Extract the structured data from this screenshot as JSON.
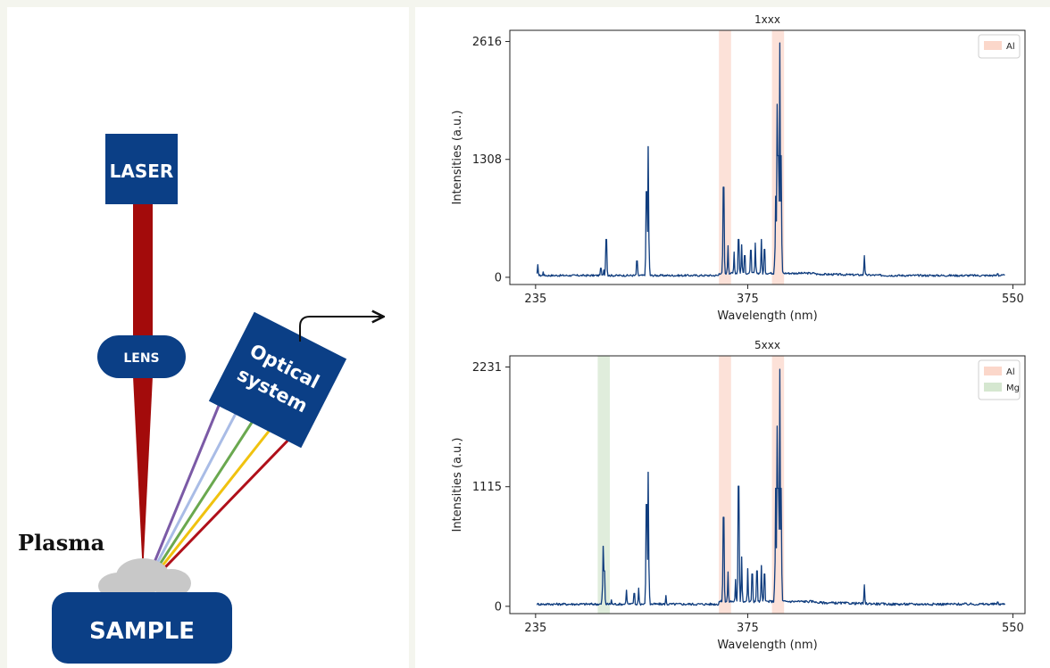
{
  "diagram": {
    "laser_label": "LASER",
    "lens_label": "LENS",
    "optical_label_line1": "Optical",
    "optical_label_line2": "system",
    "sample_label": "SAMPLE",
    "plasma_label": "Plasma",
    "colors": {
      "box_fill": "#0b3f86",
      "beam": "#a30b0b",
      "plasma_cloud": "#c8c8c8",
      "rays": [
        "#7b5aa6",
        "#a9bce6",
        "#6aa84f",
        "#f0c20f",
        "#b0101a"
      ]
    }
  },
  "chart_data": [
    {
      "type": "line",
      "title": "1xxx",
      "xlabel": "Wavelength (nm)",
      "ylabel": "Intensities (a.u.)",
      "xlim": [
        218,
        558
      ],
      "ylim": [
        -80,
        2740
      ],
      "xticks": [
        235,
        375,
        550
      ],
      "yticks": [
        0,
        1308,
        2616
      ],
      "xtick_labels": [
        "235",
        "375",
        "550"
      ],
      "ytick_labels": [
        "0",
        "1308",
        "2616"
      ],
      "legend": {
        "position": "top-right",
        "entries": [
          {
            "name": "Al",
            "color": "#f9c9b8"
          }
        ]
      },
      "highlight_bands": [
        {
          "element": "Al",
          "x": [
            356,
            364
          ],
          "color": "#f9c9b8"
        },
        {
          "element": "Al",
          "x": [
            391,
            399
          ],
          "color": "#f9c9b8"
        }
      ],
      "series": [
        {
          "color": "#103d7e",
          "baseline": 20,
          "peaks": [
            {
              "x": 236.5,
              "y": 140
            },
            {
              "x": 240,
              "y": 60
            },
            {
              "x": 280,
              "y": 80
            },
            {
              "x": 278,
              "y": 100
            },
            {
              "x": 281.6,
              "y": 420
            },
            {
              "x": 302,
              "y": 180
            },
            {
              "x": 308.2,
              "y": 950
            },
            {
              "x": 309.3,
              "y": 1450
            },
            {
              "x": 359,
              "y": 1000
            },
            {
              "x": 362,
              "y": 350
            },
            {
              "x": 366,
              "y": 280
            },
            {
              "x": 369,
              "y": 420
            },
            {
              "x": 371,
              "y": 360
            },
            {
              "x": 373,
              "y": 240
            },
            {
              "x": 377,
              "y": 300
            },
            {
              "x": 380,
              "y": 380
            },
            {
              "x": 384,
              "y": 420
            },
            {
              "x": 386,
              "y": 310
            },
            {
              "x": 393.4,
              "y": 900
            },
            {
              "x": 394.4,
              "y": 1920
            },
            {
              "x": 395,
              "y": 1350
            },
            {
              "x": 396.2,
              "y": 2600
            },
            {
              "x": 397,
              "y": 1350
            },
            {
              "x": 452,
              "y": 240
            },
            {
              "x": 540,
              "y": 40
            }
          ]
        }
      ]
    },
    {
      "type": "line",
      "title": "5xxx",
      "xlabel": "Wavelength (nm)",
      "ylabel": "Intensities (a.u.)",
      "xlim": [
        218,
        558
      ],
      "ylim": [
        -68,
        2335
      ],
      "xticks": [
        235,
        375,
        550
      ],
      "yticks": [
        0,
        1115,
        2231
      ],
      "xtick_labels": [
        "235",
        "375",
        "550"
      ],
      "ytick_labels": [
        "0",
        "1115",
        "2231"
      ],
      "legend": {
        "position": "top-right",
        "entries": [
          {
            "name": "Al",
            "color": "#f9c9b8"
          },
          {
            "name": "Mg",
            "color": "#c7dfc0"
          }
        ]
      },
      "highlight_bands": [
        {
          "element": "Mg",
          "x": [
            276,
            284
          ],
          "color": "#c7dfc0"
        },
        {
          "element": "Al",
          "x": [
            356,
            364
          ],
          "color": "#f9c9b8"
        },
        {
          "element": "Al",
          "x": [
            391,
            399
          ],
          "color": "#f9c9b8"
        }
      ],
      "series": [
        {
          "color": "#103d7e",
          "baseline": 20,
          "peaks": [
            {
              "x": 279.6,
              "y": 560
            },
            {
              "x": 280.3,
              "y": 330
            },
            {
              "x": 285,
              "y": 60
            },
            {
              "x": 295,
              "y": 150
            },
            {
              "x": 300,
              "y": 120
            },
            {
              "x": 303,
              "y": 170
            },
            {
              "x": 308.2,
              "y": 950
            },
            {
              "x": 309.3,
              "y": 1250
            },
            {
              "x": 321,
              "y": 100
            },
            {
              "x": 359,
              "y": 830
            },
            {
              "x": 362,
              "y": 320
            },
            {
              "x": 367,
              "y": 250
            },
            {
              "x": 369,
              "y": 1120
            },
            {
              "x": 371,
              "y": 460
            },
            {
              "x": 375,
              "y": 350
            },
            {
              "x": 378,
              "y": 300
            },
            {
              "x": 381,
              "y": 330
            },
            {
              "x": 384,
              "y": 380
            },
            {
              "x": 386,
              "y": 300
            },
            {
              "x": 393.4,
              "y": 1100
            },
            {
              "x": 394.4,
              "y": 1680
            },
            {
              "x": 395,
              "y": 1100
            },
            {
              "x": 396.2,
              "y": 2210
            },
            {
              "x": 397,
              "y": 1100
            },
            {
              "x": 452,
              "y": 200
            },
            {
              "x": 540,
              "y": 40
            }
          ]
        }
      ]
    }
  ]
}
